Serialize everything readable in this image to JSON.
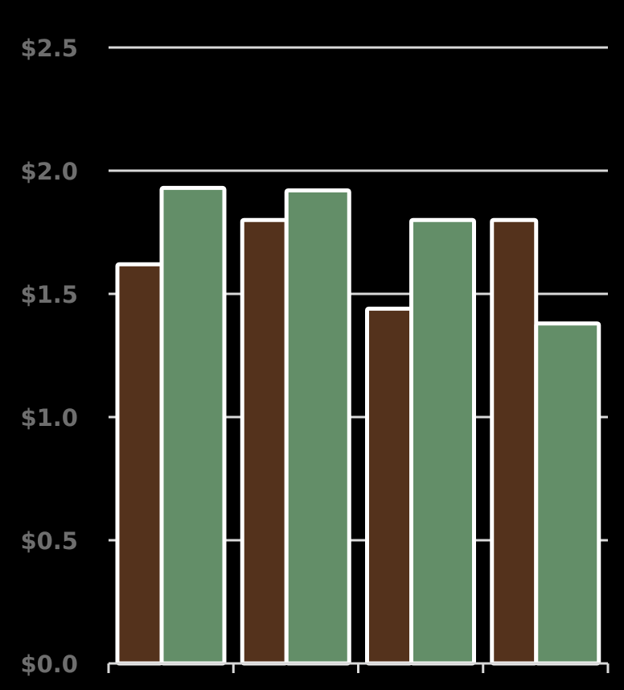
{
  "chart_data": {
    "type": "bar",
    "categories": [
      "",
      "",
      "",
      ""
    ],
    "series": [
      {
        "values": [
          1.62,
          1.8,
          1.44,
          1.8
        ],
        "color": "#54321c"
      },
      {
        "values": [
          1.93,
          1.92,
          1.8,
          1.38
        ],
        "color": "#638e68"
      }
    ],
    "ylim": [
      0,
      2.5
    ],
    "yticks": [
      0.0,
      0.5,
      1.0,
      1.5,
      2.0,
      2.5
    ],
    "ytick_labels": [
      "$0.0",
      "$0.5",
      "$1.0",
      "$1.5",
      "$2.0",
      "$2.5"
    ],
    "grid": true,
    "legend": "none",
    "colors": {
      "background": "#000000",
      "grid": "#d9d9d9",
      "bar_outline": "#ffffff",
      "tick_text": "#6e6e6e"
    }
  }
}
